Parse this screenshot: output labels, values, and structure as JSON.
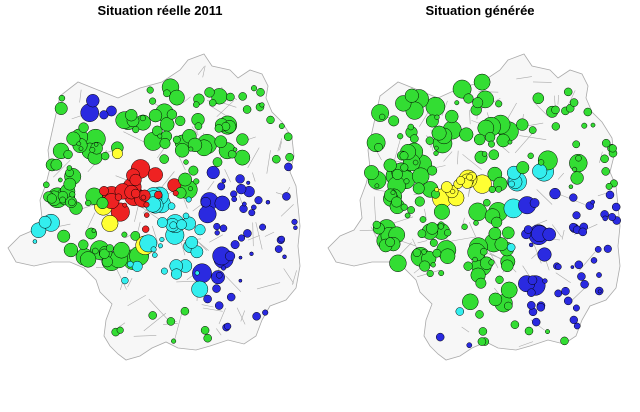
{
  "panels": [
    {
      "title": "Situation réelle 2011"
    },
    {
      "title": "Situation générée"
    }
  ],
  "colors": {
    "red": "#ee2222",
    "yellow": "#ffff33",
    "green": "#33dd33",
    "cyan": "#33eeee",
    "blue": "#2a2ae0",
    "outline": "#000000",
    "boundary": "#aaaaaa",
    "fill": "#f7f7f7"
  }
}
